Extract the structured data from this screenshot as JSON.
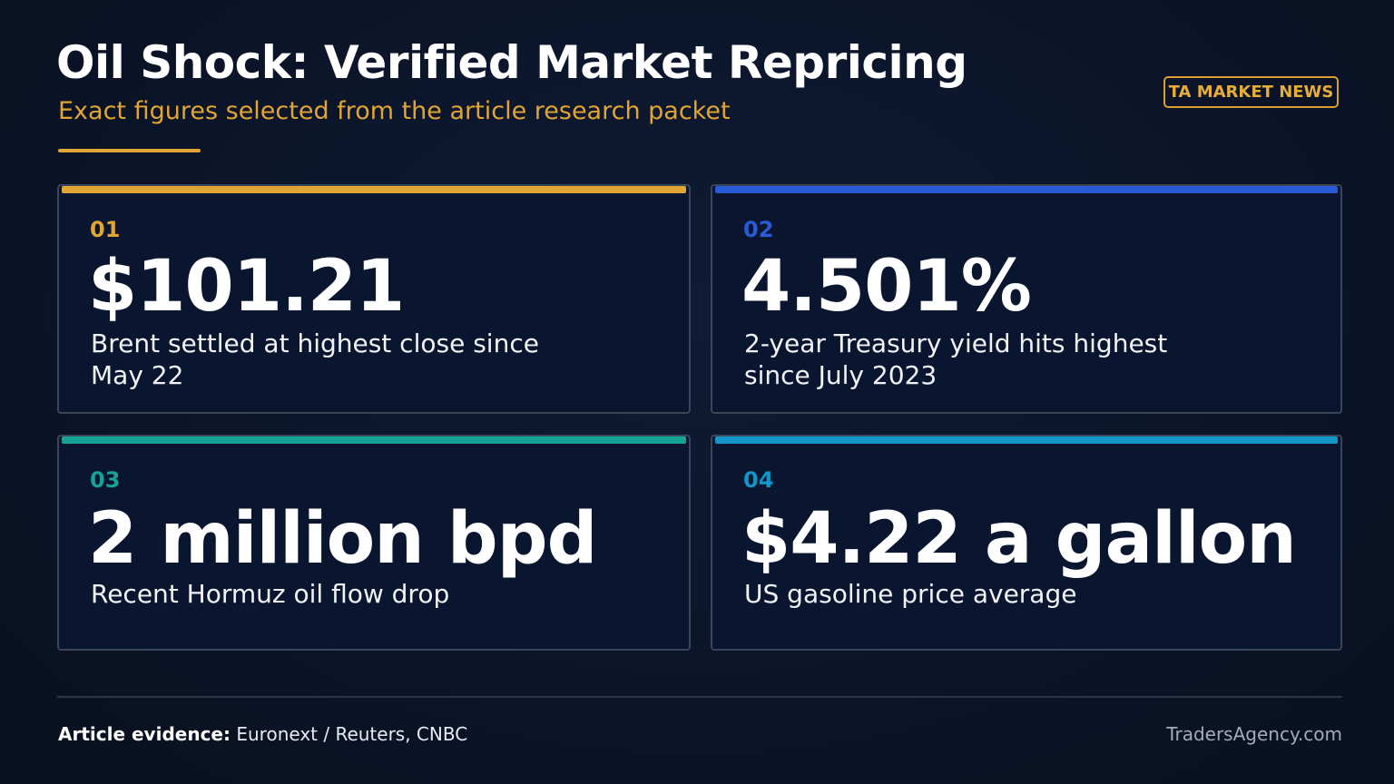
{
  "header": {
    "title": "Oil Shock: Verified Market Repricing",
    "subtitle": "Exact figures selected from the article research packet",
    "badge": "TA MARKET NEWS"
  },
  "colors": {
    "background": "#0b1428",
    "gold": "#e0a534",
    "blue": "#2a5bd7",
    "teal": "#16a395",
    "cyan": "#1596c9"
  },
  "cards": [
    {
      "number": "01",
      "value": "$101.21",
      "description": "Brent settled at highest close since May 22",
      "accent": "#e0a534"
    },
    {
      "number": "02",
      "value": "4.501%",
      "description": "2-year Treasury yield hits highest since July 2023",
      "accent": "#2a5bd7"
    },
    {
      "number": "03",
      "value": "2 million bpd",
      "description": "Recent Hormuz oil flow drop",
      "accent": "#16a395"
    },
    {
      "number": "04",
      "value": "$4.22 a gallon",
      "description": "US gasoline price average",
      "accent": "#1596c9"
    }
  ],
  "footer": {
    "evidence_label": "Article evidence:",
    "evidence_sources": "Euronext / Reuters, CNBC",
    "site": "TradersAgency.com"
  }
}
